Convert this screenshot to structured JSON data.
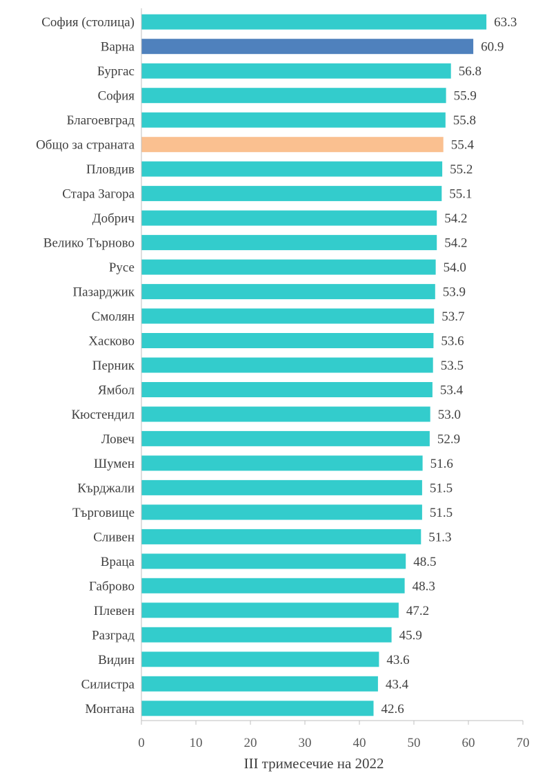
{
  "chart_data": {
    "type": "bar",
    "orientation": "horizontal",
    "categories": [
      "София (столица)",
      "Варна",
      "Бургас",
      "София",
      "Благоевград",
      "Общо за страната",
      "Пловдив",
      "Стара Загора",
      "Добрич",
      "Велико Търново",
      "Русе",
      "Пазарджик",
      "Смолян",
      "Хасково",
      "Перник",
      "Ямбол",
      "Кюстендил",
      "Ловеч",
      "Шумен",
      "Кърджали",
      "Търговище",
      "Сливен",
      "Враца",
      "Габрово",
      "Плевен",
      "Разград",
      "Видин",
      "Силистра",
      "Монтана"
    ],
    "values": [
      63.3,
      60.9,
      56.8,
      55.9,
      55.8,
      55.4,
      55.2,
      55.1,
      54.2,
      54.2,
      54.0,
      53.9,
      53.7,
      53.6,
      53.5,
      53.4,
      53.0,
      52.9,
      51.6,
      51.5,
      51.5,
      51.3,
      48.5,
      48.3,
      47.2,
      45.9,
      43.6,
      43.4,
      42.6
    ],
    "value_labels": [
      "63.3",
      "60.9",
      "56.8",
      "55.9",
      "55.8",
      "55.4",
      "55.2",
      "55.1",
      "54.2",
      "54.2",
      "54.0",
      "53.9",
      "53.7",
      "53.6",
      "53.5",
      "53.4",
      "53.0",
      "52.9",
      "51.6",
      "51.5",
      "51.5",
      "51.3",
      "48.5",
      "48.3",
      "47.2",
      "45.9",
      "43.6",
      "43.4",
      "42.6"
    ],
    "xlabel": "III тримесечие на 2022",
    "xlim": [
      0,
      70
    ],
    "xticks": [
      0,
      10,
      20,
      30,
      40,
      50,
      60,
      70
    ],
    "tick_labels": [
      "0",
      "10",
      "20",
      "30",
      "40",
      "50",
      "60",
      "70"
    ],
    "grid": false,
    "colors": {
      "default": "#33CCCC",
      "Варна": "#4F81BD",
      "Общо за страната": "#FAC090",
      "axis": "#BFBFBF",
      "text": "#404040"
    }
  }
}
